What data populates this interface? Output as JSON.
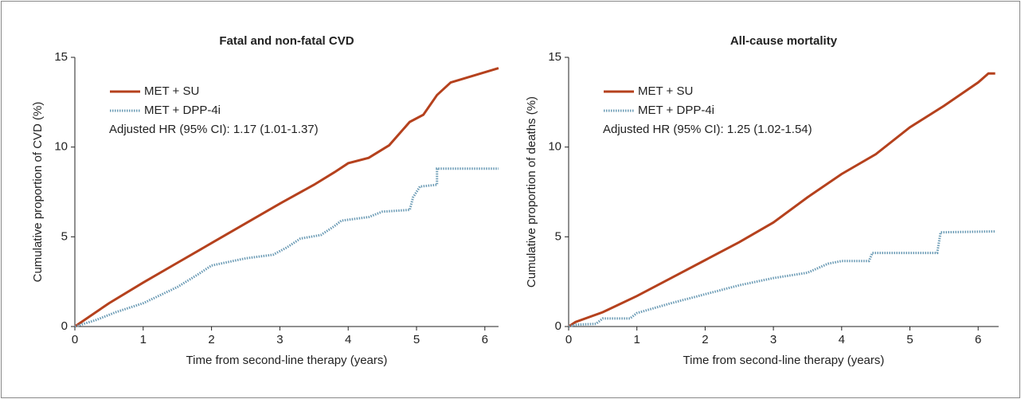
{
  "chart_data": [
    {
      "type": "line",
      "title": "Fatal and non-fatal CVD",
      "xlabel": "Time from second-line therapy (years)",
      "ylabel": "Cumulative proportion of CVD (%)",
      "annotation": "Adjusted HR (95% CI): 1.17 (1.01-1.37)",
      "xlim": [
        0,
        6.2
      ],
      "xticks": [
        0,
        1,
        2,
        3,
        4,
        5,
        6
      ],
      "ylim": [
        0,
        15
      ],
      "yticks": [
        0,
        5,
        10,
        15
      ],
      "series": [
        {
          "name": "MET + SU",
          "color": "#b5411d",
          "style": "solid",
          "x": [
            0,
            0.5,
            1,
            1.5,
            2,
            2.5,
            3,
            3.5,
            3.8,
            4,
            4.3,
            4.6,
            4.9,
            5.1,
            5.3,
            5.5,
            6.2
          ],
          "values": [
            0,
            1.3,
            2.45,
            3.55,
            4.65,
            5.75,
            6.85,
            7.9,
            8.6,
            9.1,
            9.4,
            10.1,
            11.4,
            11.8,
            12.9,
            13.6,
            14.4
          ]
        },
        {
          "name": "MET + DPP-4i",
          "color": "#6b9bb5",
          "style": "dotted",
          "x": [
            0,
            0.3,
            0.6,
            1,
            1.5,
            1.8,
            2,
            2.5,
            2.9,
            3.1,
            3.3,
            3.6,
            3.8,
            3.9,
            4.3,
            4.5,
            4.9,
            4.95,
            5.05,
            5.3,
            5.3,
            6.2
          ],
          "values": [
            0,
            0.35,
            0.8,
            1.3,
            2.2,
            2.9,
            3.4,
            3.8,
            4.0,
            4.4,
            4.9,
            5.1,
            5.6,
            5.9,
            6.1,
            6.4,
            6.5,
            7.2,
            7.8,
            7.9,
            8.8,
            8.8
          ]
        }
      ]
    },
    {
      "type": "line",
      "title": "All-cause mortality",
      "xlabel": "Time from second-line therapy (years)",
      "ylabel": "Cumulative proportion of deaths (%)",
      "annotation": "Adjusted HR (95% CI): 1.25 (1.02-1.54)",
      "xlim": [
        0,
        6.3
      ],
      "xticks": [
        0,
        1,
        2,
        3,
        4,
        5,
        6
      ],
      "ylim": [
        0,
        15
      ],
      "yticks": [
        0,
        5,
        10,
        15
      ],
      "series": [
        {
          "name": "MET + SU",
          "color": "#b5411d",
          "style": "solid",
          "x": [
            0,
            0.1,
            0.5,
            1,
            1.5,
            2,
            2.5,
            3,
            3.5,
            4,
            4.5,
            5,
            5.5,
            6,
            6.15,
            6.25
          ],
          "values": [
            0,
            0.25,
            0.8,
            1.7,
            2.7,
            3.7,
            4.7,
            5.8,
            7.2,
            8.5,
            9.6,
            11.1,
            12.3,
            13.6,
            14.1,
            14.1
          ]
        },
        {
          "name": "MET + DPP-4i",
          "color": "#6b9bb5",
          "style": "dotted",
          "x": [
            0,
            0.1,
            0.4,
            0.5,
            0.9,
            1,
            1.5,
            2,
            2.5,
            3,
            3.5,
            3.8,
            4,
            4.4,
            4.45,
            5.4,
            5.45,
            6.25
          ],
          "values": [
            0,
            0.1,
            0.15,
            0.45,
            0.45,
            0.75,
            1.3,
            1.8,
            2.3,
            2.7,
            3.0,
            3.5,
            3.65,
            3.65,
            4.1,
            4.1,
            5.25,
            5.3
          ]
        }
      ]
    }
  ]
}
